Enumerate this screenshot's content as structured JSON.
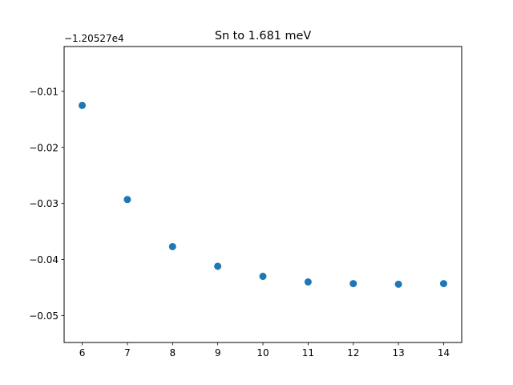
{
  "chart_data": {
    "type": "scatter",
    "title": "Sn to 1.681 meV",
    "xlabel": "",
    "ylabel": "",
    "y_offset_label": "−1.20527e4",
    "x": [
      6,
      7,
      8,
      9,
      10,
      11,
      12,
      13,
      14
    ],
    "y": [
      -0.0125,
      -0.0293,
      -0.0377,
      -0.0412,
      -0.043,
      -0.044,
      -0.0443,
      -0.0444,
      -0.0443
    ],
    "xlim": [
      5.6,
      14.4
    ],
    "ylim": [
      -0.0548,
      -0.002
    ],
    "xticks": [
      6,
      7,
      8,
      9,
      10,
      11,
      12,
      13,
      14
    ],
    "xtick_labels": [
      "6",
      "7",
      "8",
      "9",
      "10",
      "11",
      "12",
      "13",
      "14"
    ],
    "yticks": [
      -0.01,
      -0.02,
      -0.03,
      -0.04,
      -0.05
    ],
    "ytick_labels": [
      "−0.01",
      "−0.02",
      "−0.03",
      "−0.04",
      "−0.05"
    ],
    "marker_color": "#1f77b4",
    "grid": false,
    "legend": "none"
  }
}
